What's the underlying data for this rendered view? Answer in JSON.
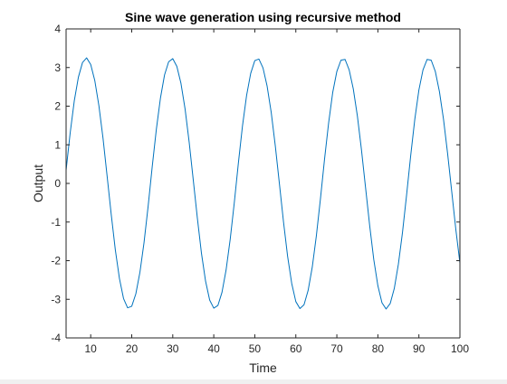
{
  "chart_data": {
    "type": "line",
    "title": "Sine wave generation using recursive method",
    "xlabel": "Time",
    "ylabel": "Output",
    "xlim": [
      4,
      100
    ],
    "ylim": [
      -4,
      4
    ],
    "xticks": [
      10,
      20,
      30,
      40,
      50,
      60,
      70,
      80,
      90,
      100
    ],
    "yticks": [
      -4,
      -3,
      -2,
      -1,
      0,
      1,
      2,
      3,
      4
    ],
    "xtick_labels": [
      "10",
      "20",
      "30",
      "40",
      "50",
      "60",
      "70",
      "80",
      "90",
      "100"
    ],
    "ytick_labels": [
      "-4",
      "-3",
      "-2",
      "-1",
      "0",
      "1",
      "2",
      "3",
      "4"
    ],
    "grid": false,
    "series": [
      {
        "color": "#0072bd",
        "x": [
          4,
          5,
          6,
          7,
          8,
          9,
          10,
          11,
          12,
          13,
          14,
          15,
          16,
          17,
          18,
          19,
          20,
          21,
          22,
          23,
          24,
          25,
          26,
          27,
          28,
          29,
          30,
          31,
          32,
          33,
          34,
          35,
          36,
          37,
          38,
          39,
          40,
          41,
          42,
          43,
          44,
          45,
          46,
          47,
          48,
          49,
          50,
          51,
          52,
          53,
          54,
          55,
          56,
          57,
          58,
          59,
          60,
          61,
          62,
          63,
          64,
          65,
          66,
          67,
          68,
          69,
          70,
          71,
          72,
          73,
          74,
          75,
          76,
          77,
          78,
          79,
          80,
          81,
          82,
          83,
          84,
          85,
          86,
          87,
          88,
          89,
          90,
          91,
          92,
          93,
          94,
          95,
          96,
          97,
          98,
          99,
          100
        ],
        "values": [
          0.34,
          1.31,
          2.14,
          2.75,
          3.13,
          3.25,
          3.08,
          2.66,
          2.01,
          1.17,
          0.19,
          -0.8,
          -1.72,
          -2.46,
          -2.98,
          -3.22,
          -3.18,
          -2.86,
          -2.3,
          -1.53,
          -0.59,
          0.44,
          1.4,
          2.21,
          2.81,
          3.15,
          3.23,
          3.03,
          2.59,
          1.93,
          1.07,
          0.09,
          -0.9,
          -1.81,
          -2.53,
          -3.02,
          -3.23,
          -3.16,
          -2.82,
          -2.24,
          -1.45,
          -0.5,
          0.53,
          1.49,
          2.28,
          2.85,
          3.18,
          3.22,
          2.99,
          2.52,
          1.84,
          0.97,
          -0.01,
          -1.0,
          -1.89,
          -2.59,
          -3.06,
          -3.24,
          -3.14,
          -2.77,
          -2.17,
          -1.36,
          -0.4,
          0.63,
          1.57,
          2.36,
          2.9,
          3.19,
          3.21,
          2.94,
          2.45,
          1.75,
          0.87,
          -0.11,
          -1.09,
          -1.97,
          -2.65,
          -3.09,
          -3.25,
          -3.11,
          -2.72,
          -2.09,
          -1.27,
          -0.3,
          0.72,
          1.66,
          2.42,
          2.94,
          3.21,
          3.19,
          2.9,
          2.38,
          1.66,
          0.77,
          -0.21,
          -1.19,
          -2.06
        ]
      }
    ]
  }
}
